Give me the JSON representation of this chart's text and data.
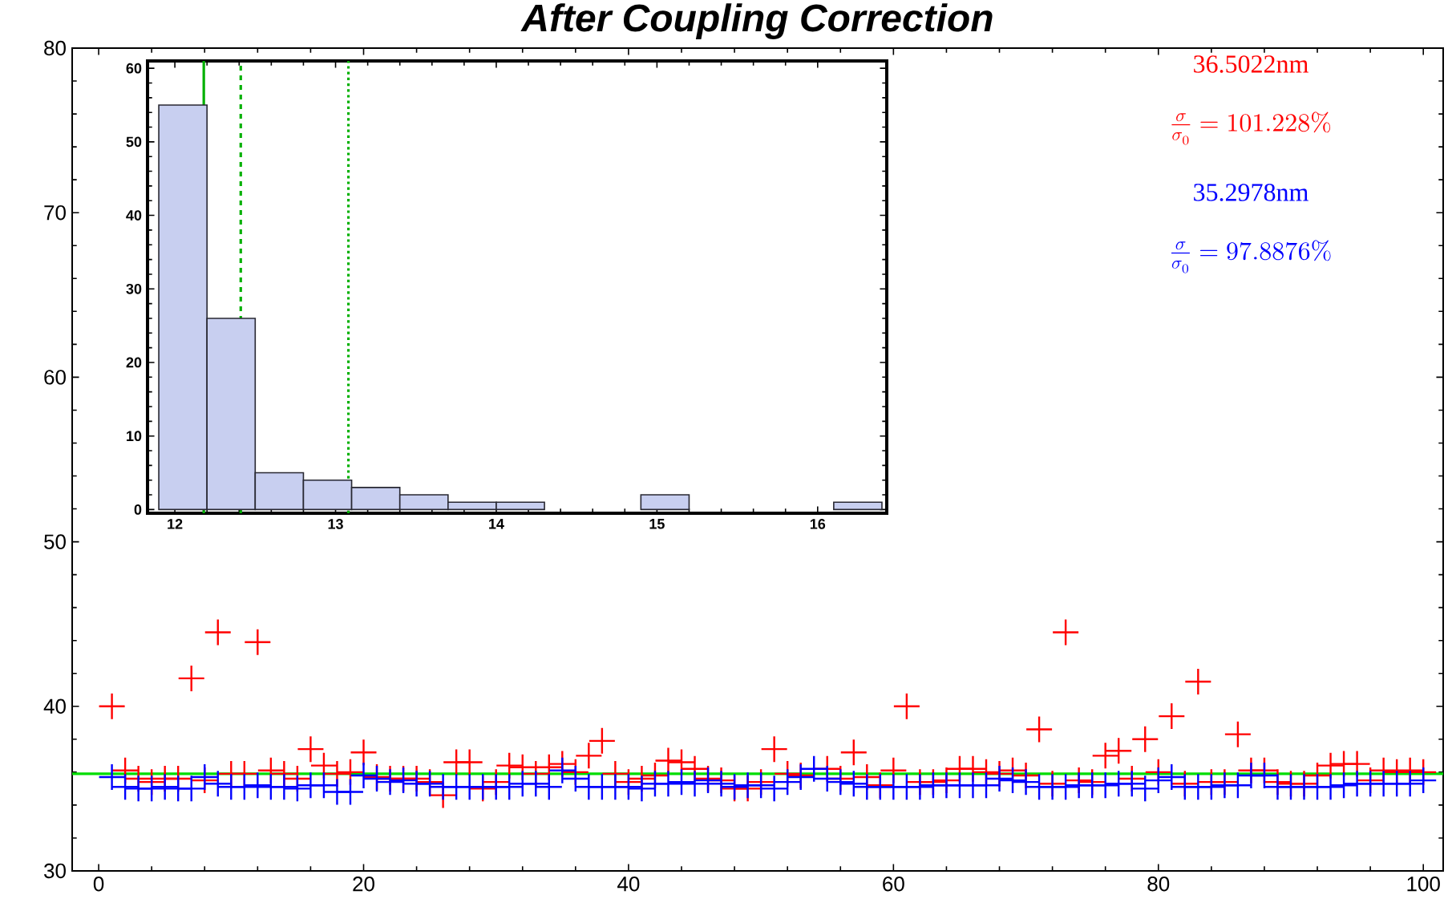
{
  "chart_data": [
    {
      "type": "scatter",
      "title": "After Coupling Correction",
      "marker": "cross",
      "x": [
        1,
        2,
        3,
        4,
        5,
        6,
        7,
        8,
        9,
        10,
        11,
        12,
        13,
        14,
        15,
        16,
        17,
        18,
        19,
        20,
        21,
        22,
        23,
        24,
        25,
        26,
        27,
        28,
        29,
        30,
        31,
        32,
        33,
        34,
        35,
        36,
        37,
        38,
        39,
        40,
        41,
        42,
        43,
        44,
        45,
        46,
        47,
        48,
        49,
        50,
        51,
        52,
        53,
        54,
        55,
        56,
        57,
        58,
        59,
        60,
        61,
        62,
        63,
        64,
        65,
        66,
        67,
        68,
        69,
        70,
        71,
        72,
        73,
        74,
        75,
        76,
        77,
        78,
        79,
        80,
        81,
        82,
        83,
        84,
        85,
        86,
        87,
        88,
        89,
        90,
        91,
        92,
        93,
        94,
        95,
        96,
        97,
        98,
        99,
        100
      ],
      "series": [
        {
          "color": "#ff0000",
          "values": [
            40.0,
            36.1,
            35.6,
            35.4,
            35.6,
            35.6,
            41.7,
            35.5,
            44.5,
            35.9,
            35.9,
            43.9,
            36.1,
            35.9,
            35.6,
            37.4,
            36.4,
            35.9,
            36.0,
            37.2,
            35.7,
            35.6,
            35.6,
            35.6,
            35.4,
            34.6,
            36.6,
            36.6,
            35.0,
            35.4,
            36.4,
            36.3,
            35.9,
            36.3,
            36.5,
            36.0,
            37.0,
            37.9,
            35.9,
            35.4,
            35.6,
            35.8,
            36.7,
            36.6,
            36.2,
            35.6,
            35.5,
            35.0,
            35.0,
            35.4,
            37.4,
            35.9,
            35.8,
            null,
            36.2,
            35.6,
            37.2,
            35.7,
            35.2,
            36.1,
            40.0,
            35.4,
            35.4,
            35.5,
            36.2,
            36.2,
            36.0,
            35.9,
            36.1,
            35.8,
            38.6,
            35.3,
            44.5,
            35.5,
            35.4,
            37.0,
            37.3,
            35.6,
            38.0,
            36.0,
            39.4,
            35.3,
            41.5,
            35.4,
            35.4,
            38.3,
            36.1,
            36.1,
            35.4,
            35.3,
            35.3,
            35.8,
            36.4,
            36.5,
            36.5,
            35.5,
            36.1,
            36.0,
            36.1,
            36.0
          ]
        },
        {
          "color": "#0000ff",
          "values": [
            35.7,
            35.1,
            35.0,
            35.0,
            35.1,
            35.0,
            35.0,
            35.7,
            35.3,
            35.1,
            35.1,
            35.2,
            35.1,
            35.1,
            35.0,
            35.2,
            35.2,
            34.8,
            34.8,
            35.8,
            35.6,
            35.4,
            35.5,
            35.3,
            35.3,
            35.1,
            35.1,
            35.1,
            35.1,
            35.1,
            35.1,
            35.3,
            35.3,
            35.1,
            36.1,
            35.6,
            35.1,
            35.1,
            35.1,
            35.1,
            35.0,
            35.3,
            35.3,
            35.4,
            35.3,
            35.5,
            35.3,
            35.1,
            35.2,
            35.2,
            35.0,
            35.4,
            35.7,
            36.2,
            35.6,
            35.4,
            35.3,
            35.1,
            35.1,
            35.1,
            35.1,
            35.1,
            35.2,
            35.2,
            35.2,
            35.2,
            35.2,
            35.6,
            35.5,
            35.4,
            35.1,
            35.1,
            35.1,
            35.2,
            35.2,
            35.2,
            35.3,
            35.3,
            35.0,
            35.5,
            35.7,
            35.1,
            35.1,
            35.1,
            35.2,
            35.2,
            35.8,
            35.8,
            35.1,
            35.1,
            35.1,
            35.1,
            35.1,
            35.2,
            35.3,
            35.3,
            35.3,
            35.3,
            35.3,
            35.5
          ]
        }
      ],
      "xlim": [
        -2,
        101.5
      ],
      "ylim": [
        30,
        80
      ],
      "xticks": [
        0,
        20,
        40,
        60,
        80,
        100
      ],
      "yticks": [
        30,
        40,
        50,
        60,
        70,
        80
      ],
      "ref_lines": [
        {
          "axis": "y",
          "value": 35.9,
          "color": "#00dd00"
        }
      ],
      "annotations": [
        "36.5022nm",
        "\\frac{\\sigma}{\\sigma_0}=101.228\\%",
        "35.2978nm",
        "\\frac{\\sigma}{\\sigma_0}=97.8876\\%"
      ]
    },
    {
      "type": "histogram",
      "color": "#c8cff0",
      "bins": [
        11.9,
        12.2,
        12.5,
        12.8,
        13.1,
        13.4,
        13.7,
        14.0,
        14.3,
        14.6,
        14.9,
        15.2,
        15.5,
        15.8,
        16.1,
        16.4
      ],
      "values": [
        55,
        26,
        5,
        4,
        3,
        2,
        1,
        1,
        0,
        0,
        2,
        0,
        0,
        0,
        1
      ],
      "xlim": [
        11.83,
        16.43
      ],
      "ylim": [
        -0.5,
        61
      ],
      "xticks": [
        12,
        13,
        14,
        15,
        16
      ],
      "yticks": [
        0,
        10,
        20,
        30,
        40,
        50,
        60
      ],
      "ref_lines": [
        {
          "axis": "x",
          "value": 12.18,
          "color": "#00b000",
          "line_style": "solid"
        },
        {
          "axis": "x",
          "value": 12.41,
          "color": "#00b000",
          "line_style": "dashed"
        },
        {
          "axis": "x",
          "value": 13.08,
          "color": "#00b000",
          "line_style": "dotted"
        }
      ]
    }
  ]
}
